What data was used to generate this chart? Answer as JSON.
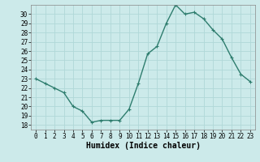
{
  "x": [
    0,
    1,
    2,
    3,
    4,
    5,
    6,
    7,
    8,
    9,
    10,
    11,
    12,
    13,
    14,
    15,
    16,
    17,
    18,
    19,
    20,
    21,
    22,
    23
  ],
  "y": [
    23,
    22.5,
    22,
    21.5,
    20,
    19.5,
    18.3,
    18.5,
    18.5,
    18.5,
    19.7,
    22.5,
    25.7,
    26.5,
    29,
    31,
    30,
    30.2,
    29.5,
    28.3,
    27.3,
    25.3,
    23.5,
    22.7
  ],
  "line_color": "#2e7d6e",
  "marker": "+",
  "markersize": 3,
  "linewidth": 1.0,
  "bg_color": "#cceaea",
  "grid_color": "#b0d8d8",
  "xlabel": "Humidex (Indice chaleur)",
  "xlim": [
    -0.5,
    23.5
  ],
  "ylim": [
    17.5,
    31.0
  ],
  "yticks": [
    18,
    19,
    20,
    21,
    22,
    23,
    24,
    25,
    26,
    27,
    28,
    29,
    30
  ],
  "xticks": [
    0,
    1,
    2,
    3,
    4,
    5,
    6,
    7,
    8,
    9,
    10,
    11,
    12,
    13,
    14,
    15,
    16,
    17,
    18,
    19,
    20,
    21,
    22,
    23
  ],
  "tick_fontsize": 5.5,
  "label_fontsize": 7,
  "markeredgewidth": 0.8
}
